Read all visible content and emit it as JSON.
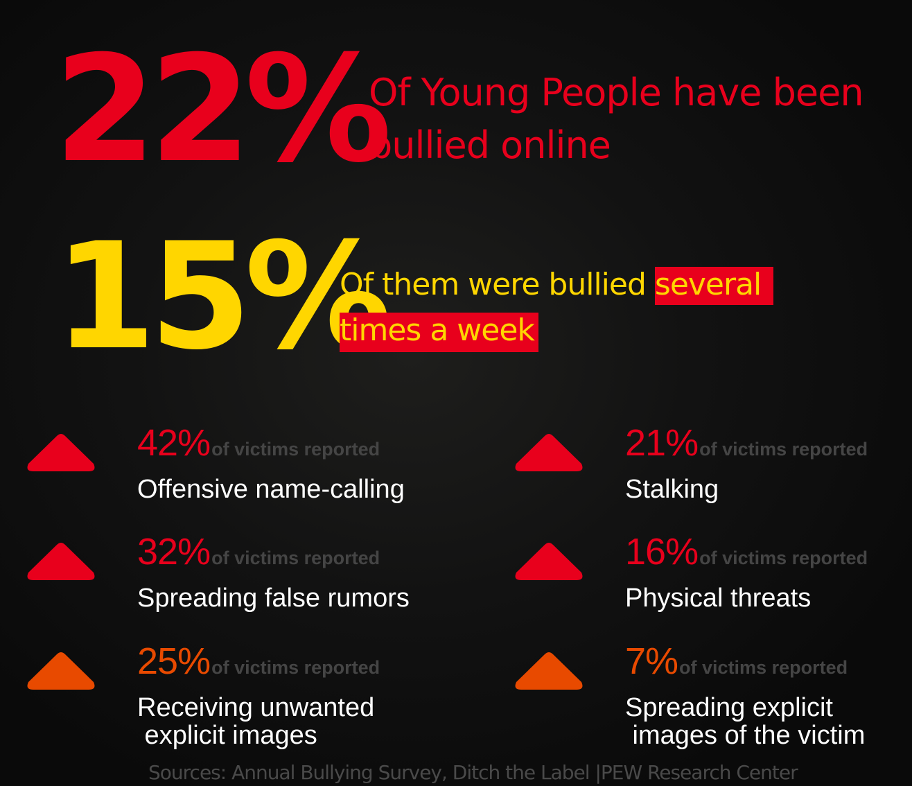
{
  "colors": {
    "red": "#e8001c",
    "yellow": "#ffd600",
    "orange": "#e84a00",
    "background": "#0f0f0f",
    "muted": "#454545"
  },
  "headline1": {
    "value": "22%",
    "text_line1": "Of Young People have been",
    "text_line2": "bullied online"
  },
  "headline2": {
    "value": "15%",
    "text_plain": "Of them were bullied ",
    "text_highlight1": "several",
    "text_highlight2": "times a week"
  },
  "items": [
    {
      "percent": "42%",
      "suffix": "of victims reported",
      "label": "Offensive name-calling",
      "color": "#e8001c",
      "icon": "triangle-up-icon"
    },
    {
      "percent": "21%",
      "suffix": "of victims reported",
      "label": "Stalking",
      "color": "#e8001c",
      "icon": "triangle-up-icon"
    },
    {
      "percent": "32%",
      "suffix": "of victims reported",
      "label": "Spreading false rumors",
      "color": "#e8001c",
      "icon": "triangle-up-icon"
    },
    {
      "percent": "16%",
      "suffix": "of victims reported",
      "label": "Physical threats",
      "color": "#e8001c",
      "icon": "triangle-up-icon"
    },
    {
      "percent": "25%",
      "suffix": "of victims reported",
      "label": "Receiving unwanted\n explicit images",
      "color": "#e84a00",
      "icon": "triangle-up-icon"
    },
    {
      "percent": "7%",
      "suffix": "of victims reported",
      "label": "Spreading explicit\n images of the victim",
      "color": "#e84a00",
      "icon": "triangle-up-icon"
    }
  ],
  "sources": "Sources: Annual Bullying Survey, Ditch the Label |PEW Research Center"
}
